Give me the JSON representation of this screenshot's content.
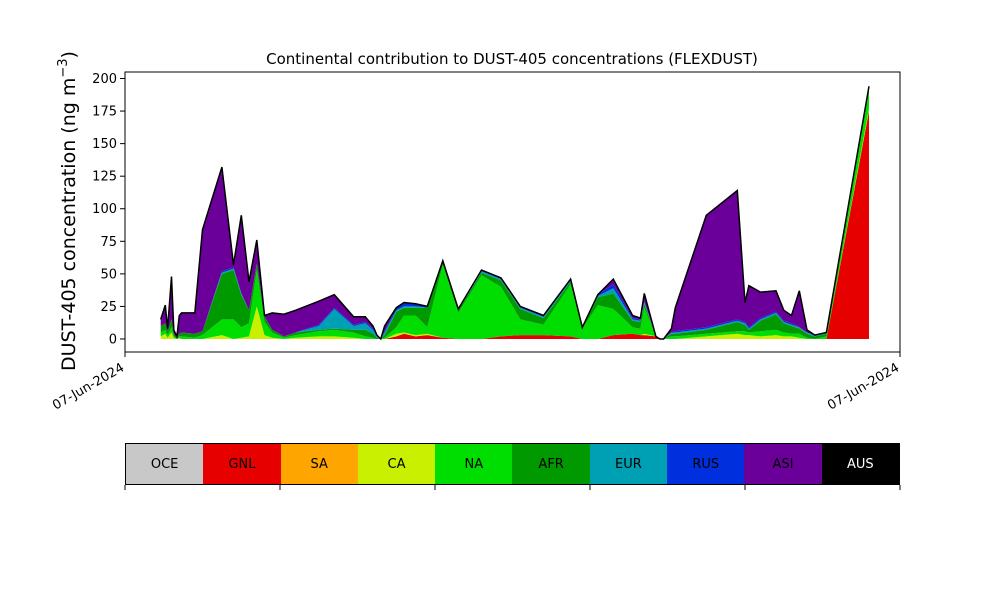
{
  "chart_data": {
    "type": "area",
    "stacked": true,
    "title": "Continental contribution to DUST-405 concentrations (FLEXDUST)",
    "ylabel_main": "DUST-405 concentration (ng m",
    "ylabel_sup": "−3",
    "ylabel_close": ")",
    "ylim": [
      -10,
      205
    ],
    "yticks": [
      0,
      25,
      50,
      75,
      100,
      125,
      150,
      175,
      200
    ],
    "xlim": [
      0,
      100
    ],
    "xtick_labels": [
      "07-Jun-2024",
      "07-Jun-2024"
    ],
    "x": [
      4.6,
      5.2,
      5.5,
      6.0,
      6.3,
      6.7,
      7.0,
      7.3,
      9.0,
      10.0,
      12.5,
      14.0,
      15.0,
      16.0,
      17.0,
      18.0,
      19.0,
      20.5,
      22.0,
      25.0,
      27.0,
      29.5,
      31.0,
      32.0,
      32.5,
      33.0,
      33.5,
      35.0,
      36.0,
      37.5,
      39.0,
      41.0,
      43.0,
      46.0,
      48.5,
      51.0,
      54.0,
      57.5,
      59.0,
      61.0,
      63.0,
      65.5,
      66.5,
      67.0,
      68.5,
      69.0,
      69.5,
      70.5,
      71.0,
      75.0,
      79.0,
      80.0,
      80.5,
      82.0,
      84.0,
      85.0,
      86.0,
      87.0,
      88.0,
      89.0,
      90.5,
      96.0
    ],
    "series": [
      {
        "name": "OCE",
        "color": "#c8c8c8",
        "values": [
          0,
          0,
          0,
          0,
          0,
          0,
          0,
          0,
          0,
          0,
          0,
          0,
          0,
          0,
          0,
          0,
          0,
          0,
          0,
          0,
          0,
          0,
          0,
          0,
          0,
          0,
          0,
          0,
          0,
          0,
          0,
          0,
          0,
          0,
          0,
          0,
          0,
          0,
          0,
          0,
          0,
          0,
          0,
          0,
          0,
          0,
          0,
          0,
          0,
          0,
          0,
          0,
          0,
          0,
          0,
          0,
          0,
          0,
          0,
          0,
          0,
          0
        ]
      },
      {
        "name": "GNL",
        "color": "#e60000",
        "values": [
          0,
          0,
          0,
          0,
          0,
          0,
          0,
          0,
          0,
          0,
          0,
          0,
          0,
          0,
          0,
          0,
          0,
          0,
          0,
          0,
          0,
          0,
          0,
          0,
          0,
          0,
          0,
          2,
          4,
          2,
          3,
          1,
          0,
          0,
          2,
          3,
          3,
          2,
          0,
          0,
          3,
          4,
          3,
          3,
          2,
          0,
          0,
          0,
          0,
          0,
          0,
          0,
          0,
          0,
          0,
          0,
          0,
          0,
          0,
          0,
          0,
          175
        ]
      },
      {
        "name": "SA",
        "color": "#ffa500",
        "values": [
          0,
          0,
          0,
          0,
          0,
          0,
          0,
          0,
          0,
          0,
          0,
          0,
          0,
          0,
          0,
          0,
          0,
          0,
          0,
          0,
          0,
          0,
          0,
          0,
          0,
          0,
          0,
          0,
          0,
          0,
          0,
          0,
          0,
          0,
          0,
          0,
          0,
          0,
          0,
          0,
          0,
          0,
          0,
          0,
          0,
          0,
          0,
          0,
          0,
          0,
          0,
          0,
          0,
          0,
          0,
          0,
          0,
          0,
          0,
          0,
          0,
          0
        ]
      },
      {
        "name": "CA",
        "color": "#c8f000",
        "values": [
          2,
          4,
          1,
          5,
          1,
          0,
          1,
          0,
          0,
          0,
          3,
          0,
          1,
          2,
          25,
          3,
          1,
          0,
          1,
          2,
          2,
          1,
          0,
          0,
          0,
          0,
          0,
          2,
          1,
          1,
          1,
          0,
          0,
          0,
          0,
          0,
          0,
          0,
          0,
          0,
          0,
          0,
          0,
          1,
          0,
          0,
          0,
          0,
          0,
          2,
          4,
          3,
          3,
          2,
          3,
          2,
          2,
          1,
          0,
          0,
          0,
          2
        ]
      },
      {
        "name": "NA",
        "color": "#00dd00",
        "values": [
          3,
          3,
          2,
          4,
          1,
          0,
          1,
          2,
          1,
          3,
          12,
          15,
          8,
          10,
          28,
          10,
          4,
          1,
          2,
          4,
          5,
          4,
          2,
          1,
          0,
          0,
          1,
          5,
          13,
          15,
          5,
          56,
          20,
          49,
          38,
          12,
          8,
          40,
          8,
          26,
          20,
          5,
          5,
          20,
          0,
          0,
          0,
          2,
          2,
          2,
          2,
          3,
          2,
          4,
          4,
          3,
          2,
          3,
          1,
          0,
          2,
          14
        ]
      },
      {
        "name": "AFR",
        "color": "#009900",
        "values": [
          5,
          5,
          3,
          6,
          2,
          1,
          2,
          3,
          3,
          3,
          35,
          38,
          25,
          10,
          5,
          4,
          2,
          1,
          2,
          1,
          1,
          2,
          5,
          3,
          1,
          0,
          2,
          12,
          6,
          6,
          15,
          2,
          2,
          2,
          5,
          8,
          5,
          2,
          1,
          6,
          12,
          5,
          5,
          3,
          0,
          0,
          0,
          2,
          2,
          3,
          7,
          5,
          2,
          8,
          12,
          7,
          6,
          4,
          3,
          2,
          2,
          2
        ]
      },
      {
        "name": "EUR",
        "color": "#00a0b4",
        "values": [
          0,
          0,
          0,
          0,
          0,
          0,
          0,
          0,
          0,
          0,
          1,
          1,
          1,
          0,
          0,
          0,
          0,
          0,
          0,
          3,
          15,
          3,
          5,
          3,
          1,
          0,
          2,
          1,
          1,
          1,
          0,
          0,
          0,
          1,
          1,
          1,
          1,
          1,
          0,
          1,
          4,
          1,
          1,
          1,
          0,
          0,
          0,
          1,
          1,
          1,
          1,
          1,
          1,
          1,
          1,
          1,
          1,
          1,
          1,
          1,
          1,
          1
        ]
      },
      {
        "name": "RUS",
        "color": "#0030dd",
        "values": [
          0,
          0,
          0,
          0,
          0,
          0,
          0,
          0,
          0,
          0,
          1,
          1,
          0,
          0,
          0,
          0,
          0,
          0,
          0,
          1,
          1,
          1,
          1,
          1,
          0,
          0,
          1,
          2,
          3,
          2,
          1,
          1,
          1,
          1,
          1,
          1,
          1,
          1,
          0,
          1,
          3,
          1,
          1,
          1,
          0,
          0,
          0,
          0,
          1,
          1,
          1,
          1,
          1,
          1,
          1,
          1,
          1,
          0,
          0,
          0,
          0,
          0
        ]
      },
      {
        "name": "ASI",
        "color": "#6a0099",
        "values": [
          5,
          14,
          2,
          33,
          3,
          1,
          14,
          15,
          16,
          78,
          80,
          2,
          60,
          22,
          18,
          1,
          13,
          17,
          17,
          18,
          10,
          6,
          4,
          2,
          1,
          0,
          4,
          0,
          0,
          0,
          0,
          0,
          0,
          0,
          0,
          0,
          0,
          0,
          0,
          0,
          4,
          2,
          1,
          6,
          0,
          0,
          0,
          3,
          18,
          86,
          99,
          15,
          32,
          20,
          16,
          8,
          6,
          28,
          2,
          0,
          0,
          0
        ]
      },
      {
        "name": "AUS",
        "color": "#000000",
        "values": [
          0,
          0,
          0,
          0,
          0,
          0,
          0,
          0,
          0,
          0,
          0,
          0,
          0,
          0,
          0,
          0,
          0,
          0,
          0,
          0,
          0,
          0,
          0,
          0,
          0,
          0,
          0,
          0,
          0,
          0,
          0,
          0,
          0,
          0,
          0,
          0,
          0,
          0,
          0,
          0,
          0,
          0,
          0,
          0,
          0,
          0,
          0,
          0,
          0,
          0,
          0,
          0,
          0,
          0,
          0,
          0,
          0,
          0,
          0,
          0,
          0,
          0
        ]
      }
    ]
  }
}
